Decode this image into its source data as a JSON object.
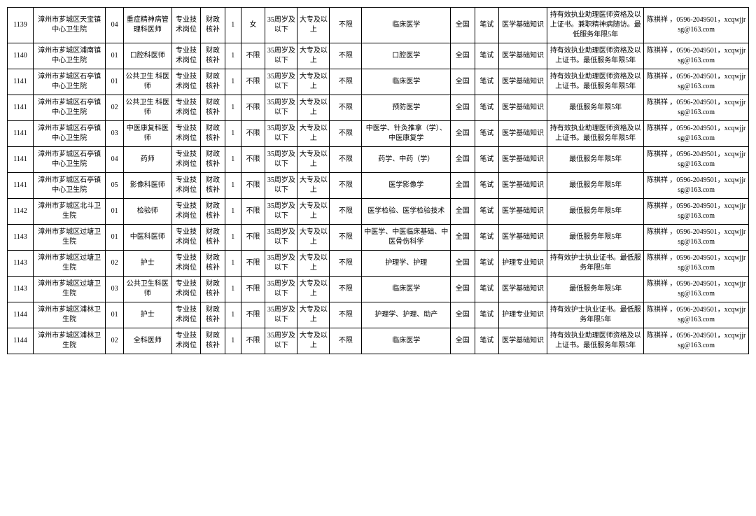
{
  "rows": [
    {
      "id": "1139",
      "unit": "漳州市芗城区天宝镇中心卫生院",
      "code": "04",
      "position": "重症精神病管理科医师",
      "type": "专业技术岗位",
      "fund": "财政核补",
      "count": "1",
      "gender": "女",
      "age": "35周岁及以下",
      "edu": "大专及以上",
      "degree": "不限",
      "major": "临床医学",
      "scope": "全国",
      "exam": "笔试",
      "subject": "医学基础知识",
      "remark": "持有效执业助理医师资格及以上证书。兼职精神病随访。最低服务年限5年",
      "contact": "陈祺祥 ，0596-2049501，xcqwjjrsg@163.com"
    },
    {
      "id": "1140",
      "unit": "漳州市芗城区浦南镇中心卫生院",
      "code": "01",
      "position": "口腔科医师",
      "type": "专业技术岗位",
      "fund": "财政核补",
      "count": "1",
      "gender": "不限",
      "age": "35周岁及以下",
      "edu": "大专及以上",
      "degree": "不限",
      "major": "口腔医学",
      "scope": "全国",
      "exam": "笔试",
      "subject": "医学基础知识",
      "remark": "持有效执业助理医师资格及以上证书。最低服务年限5年",
      "contact": "陈祺祥 ，0596-2049501，xcqwjjrsg@163.com"
    },
    {
      "id": "1141",
      "unit": "漳州市芗城区石亭镇中心卫生院",
      "code": "01",
      "position": "公共卫生 科医师",
      "type": "专业技术岗位",
      "fund": "财政核补",
      "count": "1",
      "gender": "不限",
      "age": "35周岁及以下",
      "edu": "大专及以上",
      "degree": "不限",
      "major": "临床医学",
      "scope": "全国",
      "exam": "笔试",
      "subject": "医学基础知识",
      "remark": "持有效执业助理医师资格及以上证书。最低服务年限5年",
      "contact": "陈祺祥 ，0596-2049501，xcqwjjrsg@163.com"
    },
    {
      "id": "1141",
      "unit": "漳州市芗城区石亭镇中心卫生院",
      "code": "02",
      "position": "公共卫生 科医师",
      "type": "专业技术岗位",
      "fund": "财政核补",
      "count": "1",
      "gender": "不限",
      "age": "35周岁及以下",
      "edu": "大专及以上",
      "degree": "不限",
      "major": "预防医学",
      "scope": "全国",
      "exam": "笔试",
      "subject": "医学基础知识",
      "remark": "最低服务年限5年",
      "contact": "陈祺祥 ，0596-2049501，xcqwjjrsg@163.com"
    },
    {
      "id": "1141",
      "unit": "漳州市芗城区石亭镇中心卫生院",
      "code": "03",
      "position": "中医康复科医师",
      "type": "专业技术岗位",
      "fund": "财政核补",
      "count": "1",
      "gender": "不限",
      "age": "35周岁及以下",
      "edu": "大专及以上",
      "degree": "不限",
      "major": "中医学、针灸推拿（学）、中医康复学",
      "scope": "全国",
      "exam": "笔试",
      "subject": "医学基础知识",
      "remark": "持有效执业助理医师资格及以上证书。最低服务年限5年",
      "contact": "陈祺祥 ，0596-2049501，xcqwjjrsg@163.com"
    },
    {
      "id": "1141",
      "unit": "漳州市芗城区石亭镇中心卫生院",
      "code": "04",
      "position": "药师",
      "type": "专业技术岗位",
      "fund": "财政核补",
      "count": "1",
      "gender": "不限",
      "age": "35周岁及以下",
      "edu": "大专及以上",
      "degree": "不限",
      "major": "药学、中药（学）",
      "scope": "全国",
      "exam": "笔试",
      "subject": "医学基础知识",
      "remark": "最低服务年限5年",
      "contact": "陈祺祥 ，0596-2049501，xcqwjjrsg@163.com"
    },
    {
      "id": "1141",
      "unit": "漳州市芗城区石亭镇中心卫生院",
      "code": "05",
      "position": "影像科医师",
      "type": "专业技术岗位",
      "fund": "财政核补",
      "count": "1",
      "gender": "不限",
      "age": "35周岁及以下",
      "edu": "大专及以上",
      "degree": "不限",
      "major": "医学影像学",
      "scope": "全国",
      "exam": "笔试",
      "subject": "医学基础知识",
      "remark": "最低服务年限5年",
      "contact": "陈祺祥 ，0596-2049501，xcqwjjrsg@163.com"
    },
    {
      "id": "1142",
      "unit": "漳州市芗城区北斗卫生院",
      "code": "01",
      "position": "检验师",
      "type": "专业技术岗位",
      "fund": "财政核补",
      "count": "1",
      "gender": "不限",
      "age": "35周岁及以下",
      "edu": "大专及以上",
      "degree": "不限",
      "major": "医学检验、医学检验技术",
      "scope": "全国",
      "exam": "笔试",
      "subject": "医学基础知识",
      "remark": "最低服务年限5年",
      "contact": "陈祺祥 ，0596-2049501，xcqwjjrsg@163.com"
    },
    {
      "id": "1143",
      "unit": "漳州市芗城区过塘卫生院",
      "code": "01",
      "position": "中医科医师",
      "type": "专业技术岗位",
      "fund": "财政核补",
      "count": "1",
      "gender": "不限",
      "age": "35周岁及以下",
      "edu": "大专及以上",
      "degree": "不限",
      "major": "中医学、中医临床基础、中医骨伤科学",
      "scope": "全国",
      "exam": "笔试",
      "subject": "医学基础知识",
      "remark": "最低服务年限5年",
      "contact": "陈祺祥 ，0596-2049501，xcqwjjrsg@163.com"
    },
    {
      "id": "1143",
      "unit": "漳州市芗城区过塘卫生院",
      "code": "02",
      "position": "护士",
      "type": "专业技术岗位",
      "fund": "财政核补",
      "count": "1",
      "gender": "不限",
      "age": "35周岁及以下",
      "edu": "大专及以上",
      "degree": "不限",
      "major": "护理学、护理",
      "scope": "全国",
      "exam": "笔试",
      "subject": "护理专业知识",
      "remark": "持有效护士执业证书。最低服务年限5年",
      "contact": "陈祺祥 ，0596-2049501，xcqwjjrsg@163.com"
    },
    {
      "id": "1143",
      "unit": "漳州市芗城区过塘卫生院",
      "code": "03",
      "position": "公共卫生科医师",
      "type": "专业技术岗位",
      "fund": "财政核补",
      "count": "1",
      "gender": "不限",
      "age": "35周岁及以下",
      "edu": "大专及以上",
      "degree": "不限",
      "major": "临床医学",
      "scope": "全国",
      "exam": "笔试",
      "subject": "医学基础知识",
      "remark": "最低服务年限5年",
      "contact": "陈祺祥 ，0596-2049501，xcqwjjrsg@163.com"
    },
    {
      "id": "1144",
      "unit": "漳州市芗城区浦林卫生院",
      "code": "01",
      "position": "护士",
      "type": "专业技术岗位",
      "fund": "财政核补",
      "count": "1",
      "gender": "不限",
      "age": "35周岁及以下",
      "edu": "大专及以上",
      "degree": "不限",
      "major": "护理学、护理、助产",
      "scope": "全国",
      "exam": "笔试",
      "subject": "护理专业知识",
      "remark": "持有效护士执业证书。最低服务年限5年",
      "contact": "陈祺祥 ，0596-2049501，xcqwjjrsg@163.com"
    },
    {
      "id": "1144",
      "unit": "漳州市芗城区浦林卫生院",
      "code": "02",
      "position": "全科医师",
      "type": "专业技术岗位",
      "fund": "财政核补",
      "count": "1",
      "gender": "不限",
      "age": "35周岁及以下",
      "edu": "大专及以上",
      "degree": "不限",
      "major": "临床医学",
      "scope": "全国",
      "exam": "笔试",
      "subject": "医学基础知识",
      "remark": "持有效执业助理医师资格及以上证书。最低服务年限5年",
      "contact": "陈祺祥 ，0596-2049501，xcqwjjrsg@163.com"
    }
  ]
}
